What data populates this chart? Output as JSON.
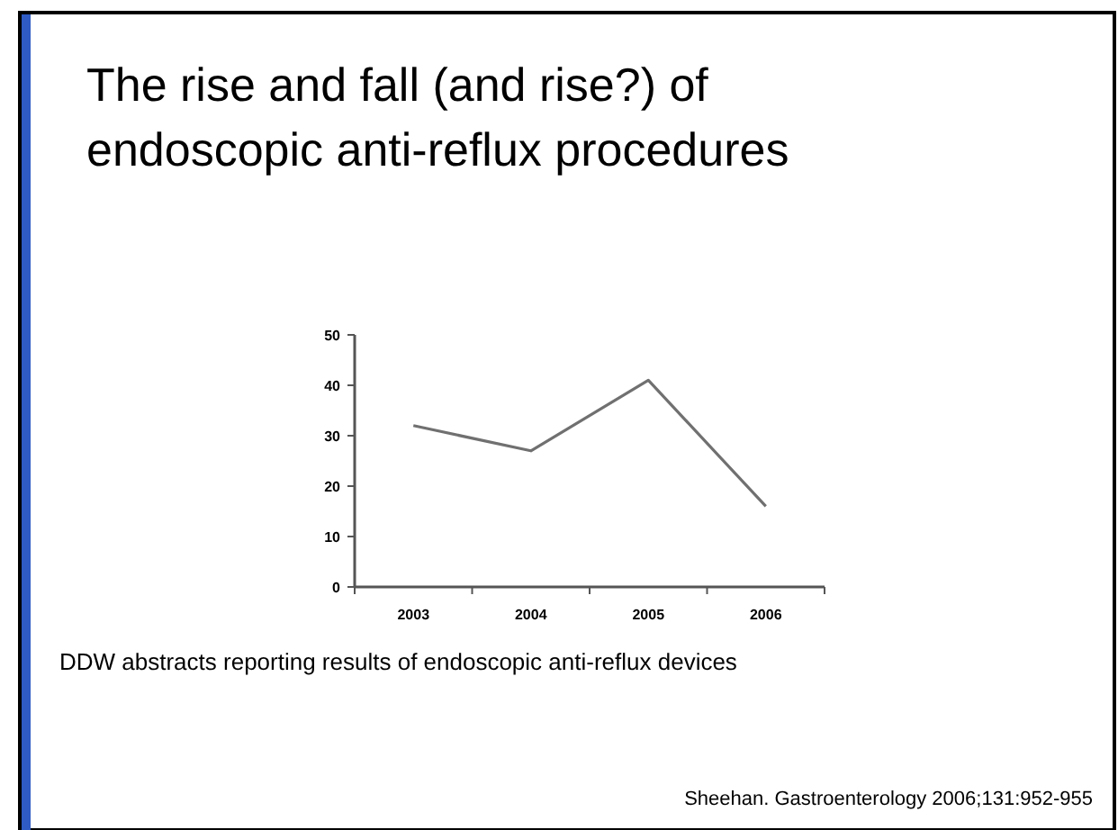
{
  "chart_data": {
    "type": "line",
    "title": "The rise and fall (and rise?) of endoscopic anti-reflux procedures",
    "categories": [
      "2003",
      "2004",
      "2005",
      "2006"
    ],
    "series": [
      {
        "color": "#707070",
        "values": [
          32,
          27,
          41,
          16
        ]
      }
    ],
    "ylim": [
      0,
      50
    ],
    "yticks": [
      0,
      10,
      20,
      30,
      40,
      50
    ],
    "grid": false,
    "marker": "none",
    "annotations": [
      "DDW abstracts reporting results of endoscopic anti-reflux devices",
      "Sheehan. Gastroenterology 2006;131:952-955"
    ]
  }
}
